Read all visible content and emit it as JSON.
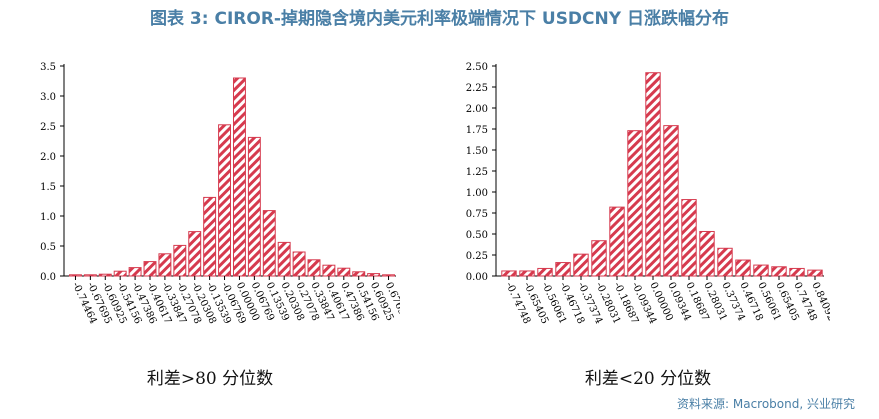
{
  "title": "图表 3:  CIROR-掉期隐含境内美元利率极端情况下 USDCNY 日涨跌幅分布",
  "source": "资料来源: Macrobond, 兴业研究",
  "colors": {
    "bar": "#d63a4e",
    "title": "#4a7fa6"
  },
  "chart_data": [
    {
      "type": "bar",
      "caption": "利差>80 分位数",
      "ylim": [
        0,
        3.5
      ],
      "yticks": [
        "0.0",
        "0.5",
        "1.0",
        "1.5",
        "2.0",
        "2.5",
        "3.0",
        "3.5"
      ],
      "categories": [
        "-0.74464",
        "-0.67695",
        "-0.60925",
        "-0.54156",
        "-0.47386",
        "-0.40617",
        "-0.33847",
        "-0.27078",
        "-0.20308",
        "-0.13539",
        "-0.06769",
        "0.00000",
        "0.06769",
        "0.13539",
        "0.20308",
        "0.27078",
        "0.33847",
        "0.40617",
        "0.47386",
        "0.54156",
        "0.60925",
        "0.67695"
      ],
      "values": [
        0.02,
        0.02,
        0.03,
        0.08,
        0.14,
        0.24,
        0.37,
        0.51,
        0.74,
        1.31,
        2.52,
        3.3,
        2.31,
        1.09,
        0.56,
        0.4,
        0.27,
        0.18,
        0.13,
        0.07,
        0.04,
        0.02
      ],
      "grid": false
    },
    {
      "type": "bar",
      "caption": "利差<20 分位数",
      "ylim": [
        0,
        2.5
      ],
      "yticks": [
        "0.00",
        "0.25",
        "0.50",
        "0.75",
        "1.00",
        "1.25",
        "1.50",
        "1.75",
        "2.00",
        "2.25",
        "2.50"
      ],
      "categories": [
        "-0.74748",
        "-0.65405",
        "-0.56061",
        "-0.46718",
        "-0.37374",
        "-0.28031",
        "-0.18687",
        "-0.09344",
        "0.00000",
        "0.09344",
        "0.18687",
        "0.28031",
        "0.37374",
        "0.46718",
        "0.56061",
        "0.65405",
        "0.74748",
        "0.84092"
      ],
      "values": [
        0.06,
        0.06,
        0.09,
        0.16,
        0.26,
        0.42,
        0.82,
        1.73,
        2.42,
        1.79,
        0.91,
        0.53,
        0.33,
        0.19,
        0.13,
        0.11,
        0.09,
        0.07
      ],
      "grid": false
    }
  ]
}
